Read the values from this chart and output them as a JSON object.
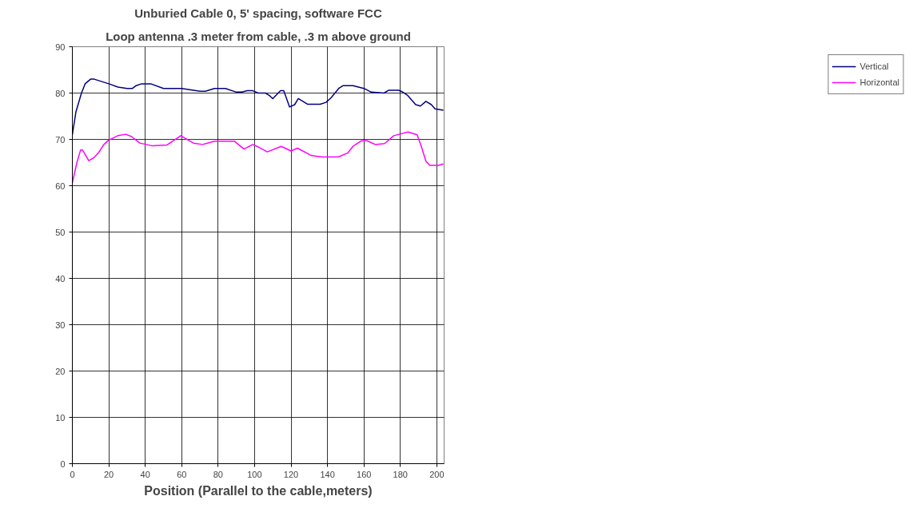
{
  "chart_data": {
    "type": "line",
    "title": "Unburied Cable 0, 5' spacing, software FCC",
    "subtitle": "Loop antenna .3 meter from cable, .3 m above ground",
    "xlabel": "Position (Parallel to the cable,meters)",
    "xlim": [
      0,
      204
    ],
    "ylim": [
      0,
      90
    ],
    "xticks": [
      0,
      20,
      40,
      60,
      80,
      100,
      120,
      140,
      160,
      180,
      200
    ],
    "yticks": [
      0,
      10,
      20,
      30,
      40,
      50,
      60,
      70,
      80,
      90
    ],
    "grid": true,
    "legend": "right",
    "marker": "none",
    "line_style": "solid",
    "series": [
      {
        "name": "Vertical",
        "color": "#000080",
        "x": [
          0,
          2,
          5,
          7,
          10,
          12,
          20,
          25,
          30,
          33,
          35,
          38,
          43,
          50,
          60,
          70,
          73,
          78,
          84,
          90,
          93,
          96,
          99,
          102,
          106,
          108,
          110,
          114.2,
          116,
          119.2,
          122,
          124,
          129,
          136,
          139.2,
          142,
          146.2,
          148.6,
          154,
          160,
          164,
          171,
          173.5,
          179,
          181,
          184,
          188.4,
          191,
          194,
          197,
          199,
          203.6
        ],
        "values": [
          71,
          76,
          80,
          82,
          83,
          83,
          82,
          81.3,
          81,
          81,
          81.6,
          82,
          82,
          81,
          81,
          80.4,
          80.4,
          81,
          81,
          80.2,
          80.2,
          80.5,
          80.5,
          80,
          80,
          79.5,
          78.8,
          80.5,
          80.5,
          77,
          77.5,
          78.8,
          77.6,
          77.6,
          78,
          79,
          81,
          81.6,
          81.6,
          81,
          80.2,
          80,
          80.6,
          80.6,
          80.3,
          79.5,
          77.5,
          77.2,
          78.2,
          77.5,
          76.6,
          76.3
        ]
      },
      {
        "name": "Horizontal",
        "color": "#ff00ff",
        "x": [
          0,
          2.5,
          4.5,
          5.6,
          9,
          11.7,
          14.5,
          17.3,
          19.8,
          25,
          29.3,
          32.5,
          37,
          44,
          52,
          59.5,
          66.4,
          71.5,
          78,
          89,
          94.2,
          99,
          101.3,
          107,
          114.6,
          120,
          123.5,
          131.3,
          136.8,
          146,
          151.2,
          154,
          158.7,
          161.8,
          166.2,
          171.3,
          176.4,
          184.2,
          189.2,
          191.5,
          194,
          196.2,
          201,
          203.6
        ],
        "values": [
          60.6,
          65,
          67.7,
          67.7,
          65.4,
          66,
          67.2,
          68.9,
          69.8,
          70.8,
          71.1,
          70.6,
          69.2,
          68.6,
          68.8,
          70.8,
          69.2,
          68.9,
          69.6,
          69.6,
          67.9,
          68.9,
          68.5,
          67.3,
          68.5,
          67.5,
          68.1,
          66.5,
          66.2,
          66.2,
          67.1,
          68.5,
          69.7,
          69.7,
          68.9,
          69.1,
          70.8,
          71.6,
          71,
          68.5,
          65.3,
          64.4,
          64.4,
          64.7
        ]
      }
    ]
  }
}
